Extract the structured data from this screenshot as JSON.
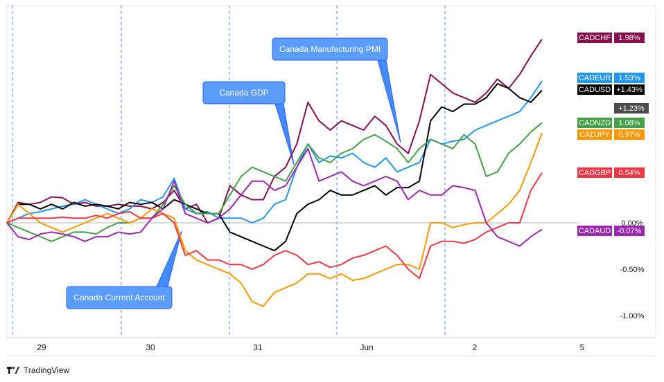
{
  "chart_data": {
    "type": "line",
    "x_tick_labels": [
      "29",
      "30",
      "31",
      "Jun",
      "2",
      "5"
    ],
    "y_ticks": [
      {
        "label": "0.00%",
        "value": 0.0
      },
      {
        "label": "-0.50%",
        "value": -0.5
      },
      {
        "label": "-1.00%",
        "value": -1.0
      }
    ],
    "ylim": [
      -1.2,
      2.0
    ],
    "grid": true,
    "crosshair_label": "+1.23%",
    "annotations": [
      {
        "text": "Canada Current Account",
        "x": 14.9,
        "y": -0.71
      },
      {
        "text": "Canada GDP",
        "x": 26.4,
        "y": 0.56
      },
      {
        "text": "Canada Manufacturing PMI",
        "x": 36.6,
        "y": 0.85
      }
    ],
    "series": [
      {
        "name": "CADCHF",
        "label": "1.98%",
        "color": "#880e4f",
        "values": [
          0.0,
          0.22,
          0.2,
          0.22,
          0.28,
          0.27,
          0.2,
          0.22,
          0.18,
          0.18,
          0.2,
          0.18,
          0.18,
          0.15,
          0.22,
          0.35,
          0.15,
          0.2,
          0.0,
          0.05,
          0.4,
          0.3,
          0.25,
          0.25,
          0.5,
          0.6,
          0.85,
          1.3,
          1.1,
          1.0,
          1.1,
          1.05,
          1.0,
          1.15,
          1.05,
          0.85,
          0.75,
          1.1,
          1.6,
          1.5,
          1.4,
          1.35,
          1.3,
          1.4,
          1.55,
          1.45,
          1.6,
          1.8,
          1.98
        ]
      },
      {
        "name": "CADEUR",
        "label": "1.53%",
        "color": "#2196f3",
        "values": [
          0.0,
          0.05,
          0.1,
          0.12,
          0.15,
          0.18,
          0.2,
          0.25,
          0.2,
          0.15,
          0.1,
          0.15,
          0.25,
          0.22,
          0.28,
          0.48,
          0.15,
          0.1,
          0.12,
          0.05,
          0.05,
          0.05,
          0.0,
          0.05,
          0.2,
          0.25,
          0.6,
          0.85,
          0.65,
          0.72,
          0.7,
          0.75,
          0.65,
          0.6,
          0.7,
          0.55,
          0.6,
          0.65,
          0.9,
          0.85,
          0.88,
          0.9,
          1.0,
          1.05,
          1.1,
          1.15,
          1.2,
          1.35,
          1.53
        ]
      },
      {
        "name": "CADUSD",
        "label": "+1.43%",
        "color": "#000000",
        "values": [
          0.0,
          0.2,
          0.2,
          0.15,
          0.2,
          0.15,
          0.22,
          0.18,
          0.2,
          0.18,
          0.15,
          0.22,
          0.2,
          0.22,
          0.15,
          0.25,
          0.2,
          0.15,
          0.1,
          0.1,
          -0.1,
          -0.15,
          -0.2,
          -0.25,
          -0.3,
          -0.2,
          0.1,
          0.2,
          0.25,
          0.35,
          0.3,
          0.3,
          0.35,
          0.4,
          0.3,
          0.38,
          0.38,
          0.45,
          1.1,
          1.25,
          1.2,
          1.28,
          1.28,
          1.35,
          1.5,
          1.45,
          1.35,
          1.3,
          1.43
        ]
      },
      {
        "name": "CADNZD",
        "label": "1.08%",
        "color": "#43a047",
        "values": [
          0.0,
          -0.05,
          -0.1,
          -0.15,
          -0.2,
          -0.15,
          -0.1,
          -0.1,
          -0.12,
          -0.05,
          0.0,
          0.0,
          0.05,
          0.05,
          0.2,
          0.4,
          0.2,
          0.1,
          0.1,
          0.1,
          0.3,
          0.5,
          0.6,
          0.55,
          0.5,
          0.45,
          0.65,
          0.85,
          0.7,
          0.65,
          0.75,
          0.8,
          0.9,
          0.95,
          0.88,
          0.8,
          0.65,
          0.8,
          0.9,
          0.85,
          0.8,
          0.95,
          0.85,
          0.5,
          0.55,
          0.75,
          0.85,
          0.98,
          1.08
        ]
      },
      {
        "name": "CADJPY",
        "label": "0.97%",
        "color": "#ff9800",
        "values": [
          0.0,
          0.2,
          0.1,
          0.0,
          -0.05,
          -0.1,
          -0.05,
          0.0,
          0.05,
          0.1,
          0.05,
          0.0,
          0.05,
          0.15,
          0.1,
          0.05,
          -0.3,
          -0.4,
          -0.45,
          -0.5,
          -0.55,
          -0.65,
          -0.85,
          -0.9,
          -0.75,
          -0.7,
          -0.65,
          -0.55,
          -0.55,
          -0.6,
          -0.55,
          -0.62,
          -0.6,
          -0.55,
          -0.5,
          -0.45,
          -0.45,
          -0.5,
          0.0,
          0.0,
          -0.05,
          -0.02,
          0.0,
          0.0,
          0.1,
          0.2,
          0.35,
          0.65,
          0.97
        ]
      },
      {
        "name": "CADGBP",
        "label": "0.54%",
        "color": "#f23645",
        "values": [
          0.0,
          0.05,
          0.05,
          0.05,
          0.05,
          0.06,
          0.05,
          0.05,
          0.08,
          0.05,
          0.1,
          0.12,
          0.05,
          0.05,
          0.1,
          0.0,
          -0.35,
          -0.3,
          -0.4,
          -0.4,
          -0.45,
          -0.45,
          -0.5,
          -0.45,
          -0.35,
          -0.3,
          -0.35,
          -0.45,
          -0.42,
          -0.48,
          -0.45,
          -0.38,
          -0.35,
          -0.3,
          -0.25,
          -0.35,
          -0.5,
          -0.6,
          -0.25,
          -0.2,
          -0.2,
          -0.22,
          -0.18,
          -0.1,
          -0.05,
          0.0,
          0.0,
          0.35,
          0.54
        ]
      },
      {
        "name": "CADAUD",
        "label": "-0.07%",
        "color": "#9c27b0",
        "values": [
          0.0,
          -0.15,
          -0.18,
          -0.12,
          -0.1,
          -0.12,
          -0.15,
          -0.2,
          -0.15,
          -0.15,
          -0.1,
          -0.12,
          -0.1,
          0.05,
          0.15,
          0.45,
          0.1,
          0.05,
          0.0,
          0.05,
          0.15,
          0.3,
          0.45,
          0.45,
          0.35,
          0.4,
          0.6,
          0.8,
          0.45,
          0.5,
          0.55,
          0.45,
          0.4,
          0.45,
          0.5,
          0.45,
          0.25,
          0.35,
          0.3,
          0.3,
          0.4,
          0.38,
          0.35,
          0.0,
          -0.15,
          -0.2,
          -0.25,
          -0.15,
          -0.07
        ]
      }
    ]
  }
}
